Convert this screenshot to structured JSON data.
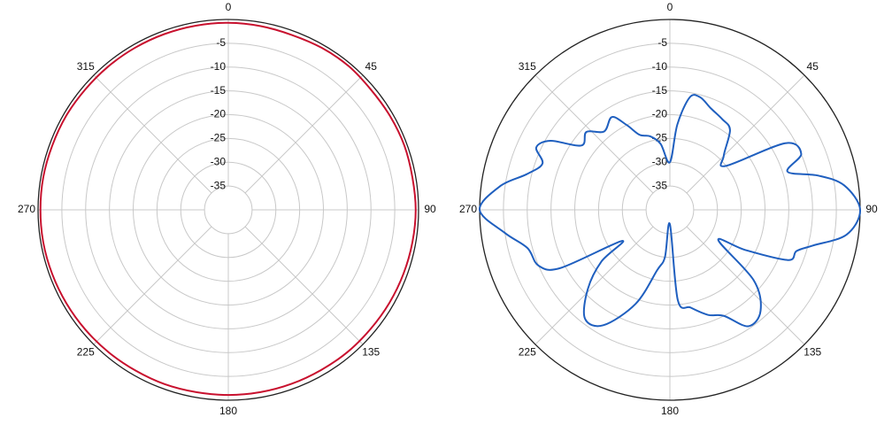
{
  "chart_data": [
    {
      "type": "polar",
      "color": "#c8102e",
      "theta": [
        0,
        10,
        20,
        30,
        40,
        50,
        60,
        70,
        80,
        90,
        100,
        110,
        120,
        130,
        140,
        150,
        160,
        170,
        180,
        190,
        200,
        210,
        220,
        230,
        240,
        250,
        260,
        270,
        280,
        290,
        300,
        310,
        320,
        330,
        340,
        350
      ],
      "values": [
        -0.7,
        -0.8,
        -0.9,
        -0.7,
        -0.6,
        -0.8,
        -0.7,
        -0.6,
        -0.7,
        -0.6,
        -0.7,
        -0.8,
        -0.9,
        -1,
        -1,
        -1.1,
        -1.1,
        -1.1,
        -1.1,
        -1.1,
        -1,
        -1,
        -0.9,
        -0.8,
        -0.7,
        -0.6,
        -0.5,
        -0.5,
        -0.5,
        -0.6,
        -0.6,
        -0.7,
        -0.7,
        -0.7,
        -0.7,
        -0.7
      ],
      "rlim": [
        -40,
        0
      ],
      "rticks": [
        -35,
        -30,
        -25,
        -20,
        -15,
        -10,
        -5
      ],
      "thetaticks": [
        0,
        45,
        90,
        135,
        180,
        225,
        270,
        315
      ],
      "grid": true
    },
    {
      "type": "polar",
      "color": "#1f5fbf",
      "theta": [
        0,
        5,
        10,
        15,
        22,
        30,
        37,
        45,
        52,
        60,
        67,
        72,
        77,
        82,
        90,
        98,
        104,
        108,
        113,
        118,
        122,
        130,
        138,
        146,
        153,
        160,
        168,
        175,
        180,
        186,
        192,
        200,
        210,
        218,
        226,
        233,
        237,
        242,
        247,
        255,
        262,
        270,
        278,
        284,
        290,
        295,
        300,
        306,
        313,
        320,
        328,
        333,
        338,
        345,
        352
      ],
      "values": [
        -30,
        -22,
        -16,
        -15.5,
        -17,
        -18,
        -19,
        -24,
        -25,
        -12,
        -10,
        -14,
        -8,
        -3,
        0,
        -2.5,
        -9,
        -12,
        -13,
        -22,
        -28,
        -17,
        -11.5,
        -10.5,
        -15,
        -16.5,
        -19,
        -21,
        -37,
        -30,
        -27,
        -19,
        -12,
        -11,
        -16,
        -22,
        -28,
        -14,
        -10,
        -9,
        -5,
        0,
        -4,
        -9,
        -11.5,
        -9,
        -11,
        -17,
        -16,
        -18.5,
        -17,
        -20,
        -23,
        -24,
        -26
      ],
      "rlim": [
        -40,
        0
      ],
      "rticks": [
        -35,
        -30,
        -25,
        -20,
        -15,
        -10,
        -5
      ],
      "thetaticks": [
        0,
        45,
        90,
        135,
        180,
        225,
        270,
        315
      ],
      "grid": true
    }
  ]
}
